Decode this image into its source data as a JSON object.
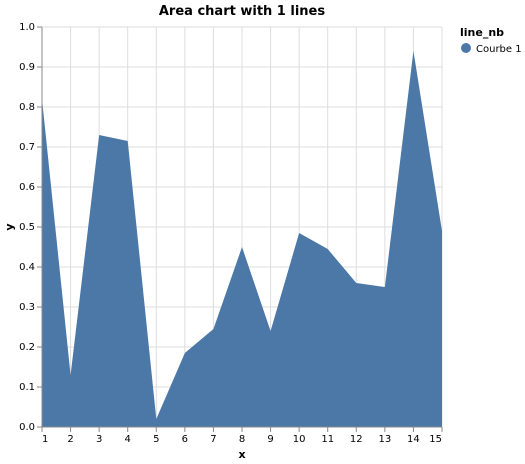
{
  "chart_data": {
    "type": "area",
    "title": "Area chart with 1 lines",
    "xlabel": "x",
    "ylabel": "y",
    "xlim": [
      1,
      15
    ],
    "ylim": [
      0,
      1
    ],
    "x_ticks": [
      "1",
      "2",
      "3",
      "4",
      "5",
      "6",
      "7",
      "8",
      "9",
      "10",
      "11",
      "12",
      "13",
      "14",
      "15"
    ],
    "y_ticks": [
      "0.0",
      "0.1",
      "0.2",
      "0.3",
      "0.4",
      "0.5",
      "0.6",
      "0.7",
      "0.8",
      "0.9",
      "1.0"
    ],
    "grid": true,
    "legend": {
      "title": "line_nb",
      "position": "top-right",
      "entries": [
        "Courbe 1"
      ]
    },
    "series": [
      {
        "name": "Courbe 1",
        "color": "#4c78a8",
        "x": [
          1,
          2,
          3,
          4,
          5,
          6,
          7,
          8,
          9,
          10,
          11,
          12,
          13,
          14,
          15
        ],
        "values": [
          0.82,
          0.13,
          0.73,
          0.715,
          0.02,
          0.185,
          0.245,
          0.45,
          0.24,
          0.485,
          0.445,
          0.36,
          0.35,
          0.94,
          0.49
        ]
      }
    ]
  }
}
